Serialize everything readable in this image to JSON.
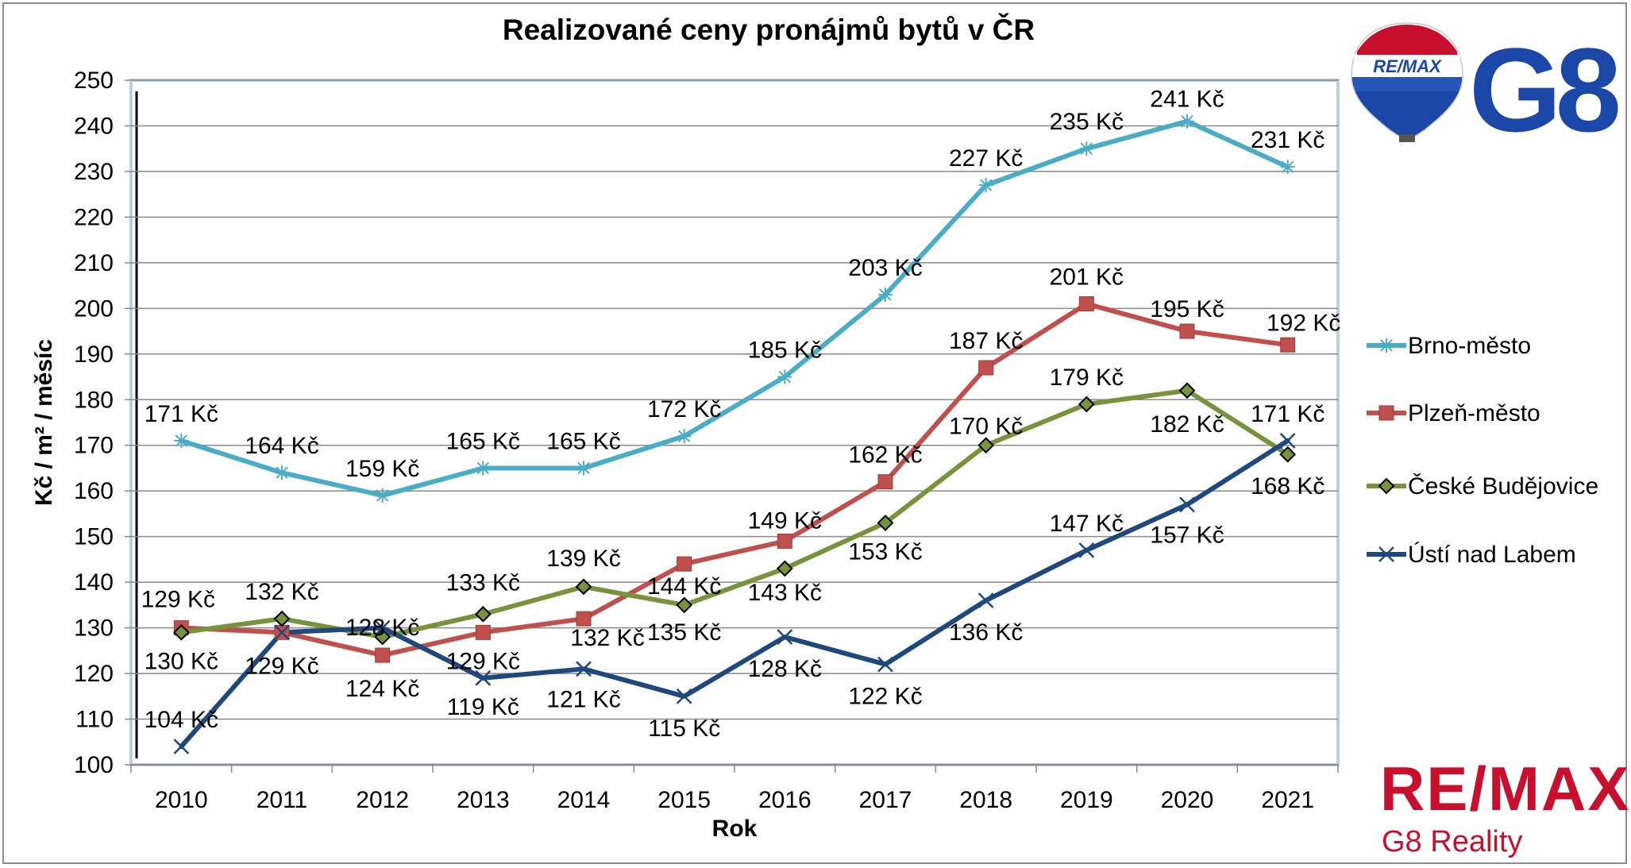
{
  "chart_data": {
    "type": "line",
    "title": "Realizované ceny pronájmů bytů v ČR",
    "xlabel": "Rok",
    "ylabel": "Kč / m² / měsíc",
    "ylim": [
      100,
      250
    ],
    "yticks": [
      "100",
      "110",
      "120",
      "130",
      "140",
      "150",
      "160",
      "170",
      "180",
      "190",
      "200",
      "210",
      "220",
      "230",
      "240",
      "250"
    ],
    "categories": [
      "2010",
      "2011",
      "2012",
      "2013",
      "2014",
      "2015",
      "2016",
      "2017",
      "2018",
      "2019",
      "2020",
      "2021"
    ],
    "grid": true,
    "legend_position": "right",
    "series": [
      {
        "name": "Brno-město",
        "color": "#4BACC6",
        "marker": "asterisk",
        "values": [
          171,
          164,
          159,
          165,
          165,
          172,
          185,
          203,
          227,
          235,
          241,
          231
        ],
        "labels": [
          "171 Kč",
          "164 Kč",
          "159 Kč",
          "165 Kč",
          "165 Kč",
          "172 Kč",
          "185 Kč",
          "203 Kč",
          "227 Kč",
          "235 Kč",
          "241 Kč",
          "231 Kč"
        ]
      },
      {
        "name": "Plzeň-město",
        "color": "#C0504D",
        "marker": "square",
        "values": [
          130,
          129,
          124,
          129,
          132,
          144,
          149,
          162,
          187,
          201,
          195,
          192
        ],
        "labels": [
          "130 Kč",
          "129 Kč",
          "124 Kč",
          "129 Kč",
          "132 Kč",
          "144 Kč",
          "149 Kč",
          "162 Kč",
          "187 Kč",
          "201 Kč",
          "195 Kč",
          "192 Kč"
        ]
      },
      {
        "name": "České Budějovice",
        "color": "#77933C",
        "marker": "diamond",
        "values": [
          129,
          132,
          128,
          133,
          139,
          135,
          143,
          153,
          170,
          179,
          182,
          168
        ],
        "labels": [
          "129 Kč",
          "132 Kč",
          "128 Kč",
          "133 Kč",
          "139 Kč",
          "135 Kč",
          "143 Kč",
          "153 Kč",
          "170 Kč",
          "179 Kč",
          "182 Kč",
          "168 Kč"
        ]
      },
      {
        "name": "Ústí nad Labem",
        "color": "#1F497D",
        "marker": "x",
        "values": [
          104,
          129,
          130,
          119,
          121,
          115,
          128,
          122,
          136,
          147,
          157,
          171
        ],
        "labels": [
          "104 Kč",
          "",
          "",
          "119 Kč",
          "121 Kč",
          "115 Kč",
          "128 Kč",
          "122 Kč",
          "136 Kč",
          "147 Kč",
          "157 Kč",
          "171 Kč"
        ]
      }
    ]
  },
  "logos": {
    "balloon_text": "RE/MAX",
    "g8_text": "G8",
    "brand_text": "RE/MAX",
    "brand_subtext": "G8 Reality",
    "brand_color": "#C8102E",
    "g8_color": "#1B47A8"
  }
}
